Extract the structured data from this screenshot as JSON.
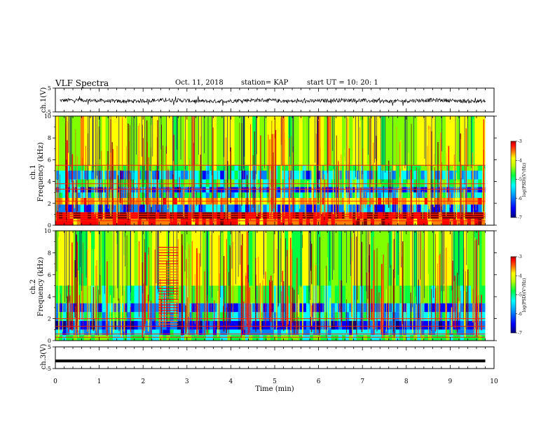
{
  "header": {
    "title": "VLF Spectra",
    "date": "Oct. 11, 2018",
    "station": "station= KAP",
    "start": "start  UT =   10: 20: 1"
  },
  "colors": {
    "spectrum": [
      "#000080",
      "#0000ff",
      "#0080ff",
      "#00ffff",
      "#00ff40",
      "#80ff00",
      "#ffff00",
      "#ff8000",
      "#ff0000",
      "#800000"
    ],
    "trace": "#000000",
    "frame": "#000000"
  },
  "chart_data": [
    {
      "type": "line",
      "name": "ch1-waveform",
      "ylabel": "ch.1(V)",
      "ylim": [
        -5,
        5
      ],
      "yticks": [
        "5",
        "-5"
      ],
      "xlim": [
        0,
        10
      ],
      "note_values": "noisy trace around -0.3 V, fluctuating roughly between -1.3 and 0.7 V"
    },
    {
      "type": "heatmap",
      "name": "ch1-spectrogram",
      "ylabel_line1": "ch.1",
      "ylabel_line2": "Frequency (kHz)",
      "ylim": [
        0,
        10
      ],
      "xlim": [
        0,
        9.8
      ],
      "yticks": [
        "0",
        "2",
        "4",
        "6",
        "8",
        "10"
      ],
      "colorbar": {
        "label": "log(PSD)(V²/Hz)",
        "range": [
          -7,
          -3
        ],
        "ticks": [
          "-3",
          "-4",
          "-5",
          "-6",
          "-7"
        ]
      },
      "bands": [
        {
          "f0": 0.0,
          "f1": 0.6,
          "level": -3.8
        },
        {
          "f0": 0.6,
          "f1": 1.2,
          "level": -3.4
        },
        {
          "f0": 1.2,
          "f1": 1.9,
          "level": -6.0
        },
        {
          "f0": 1.9,
          "f1": 2.5,
          "level": -4.2
        },
        {
          "f0": 2.5,
          "f1": 3.0,
          "level": -5.6
        },
        {
          "f0": 3.0,
          "f1": 3.5,
          "level": -6.2
        },
        {
          "f0": 3.5,
          "f1": 4.2,
          "level": -5.3
        },
        {
          "f0": 4.2,
          "f1": 5.0,
          "level": -5.8
        },
        {
          "f0": 5.0,
          "f1": 5.5,
          "level": -5.0
        },
        {
          "f0": 5.5,
          "f1": 10.0,
          "level": -4.6
        }
      ],
      "lines_khz": [
        0.4,
        0.8,
        1.0,
        2.2,
        3.3,
        3.8,
        5.5
      ]
    },
    {
      "type": "heatmap",
      "name": "ch2-spectrogram",
      "ylabel_line1": "ch.2",
      "ylabel_line2": "Frequency (kHz)",
      "ylim": [
        0,
        10
      ],
      "xlim": [
        0,
        9.8
      ],
      "yticks": [
        "0",
        "2",
        "4",
        "6",
        "8",
        "10"
      ],
      "colorbar": {
        "label": "log(PSD)(V²/Hz)",
        "range": [
          -7,
          -3
        ],
        "ticks": [
          "-3",
          "-4",
          "-5",
          "-6",
          "-7"
        ]
      },
      "bands": [
        {
          "f0": 0.0,
          "f1": 0.5,
          "level": -5.2
        },
        {
          "f0": 0.5,
          "f1": 1.0,
          "level": -5.8
        },
        {
          "f0": 1.0,
          "f1": 1.8,
          "level": -6.3
        },
        {
          "f0": 1.8,
          "f1": 2.6,
          "level": -5.6
        },
        {
          "f0": 2.6,
          "f1": 3.4,
          "level": -6.0
        },
        {
          "f0": 3.4,
          "f1": 5.0,
          "level": -5.1
        },
        {
          "f0": 5.0,
          "f1": 10.0,
          "level": -4.7
        }
      ],
      "lines_khz": [
        0.3,
        0.6,
        1.3,
        2.0
      ],
      "interference_block": {
        "t0": 2.35,
        "t1": 2.8,
        "f0": 1.5,
        "f1": 8.5
      }
    },
    {
      "type": "line",
      "name": "ch3-waveform",
      "ylabel": "ch.3(V)",
      "xlabel": "Time  (min)",
      "ylim": [
        -5,
        5
      ],
      "yticks": [
        "5",
        "-5"
      ],
      "xlim": [
        0,
        10
      ],
      "xticks": [
        "0",
        "1",
        "2",
        "3",
        "4",
        "5",
        "6",
        "7",
        "8",
        "9",
        "10"
      ],
      "constant_value": -1.5
    }
  ]
}
